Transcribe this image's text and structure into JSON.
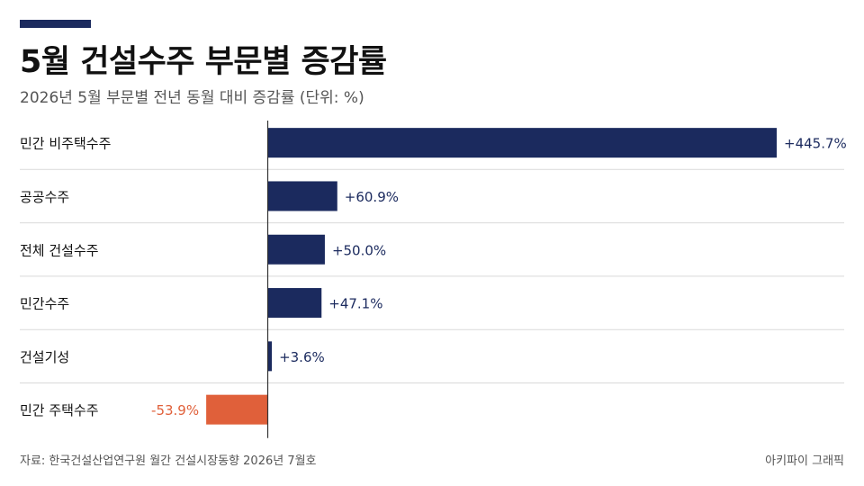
{
  "header": {
    "title": "5월 건설수주 부문별 증감률",
    "subtitle": "2026년 5월 부문별 전년 동월 대비 증감률 (단위: %)"
  },
  "footer": {
    "source": "자료: 한국건설산업연구원 월간 건설시장동향 2026년 7월호",
    "credit": "아키파이 그래픽"
  },
  "colors": {
    "accent": "#1b2a5e",
    "positive": "#1b2a5e",
    "negative": "#e0603a",
    "grid": "#d9d9d9",
    "axis": "#333333"
  },
  "chart_data": {
    "type": "bar",
    "orientation": "horizontal",
    "categories": [
      "민간 비주택수주",
      "공공수주",
      "전체 건설수주",
      "민간수주",
      "건설기성",
      "민간 주택수주"
    ],
    "values": [
      445.7,
      60.9,
      50.0,
      47.1,
      3.6,
      -53.9
    ],
    "value_labels": [
      "+445.7%",
      "+60.9%",
      "+50.0%",
      "+47.1%",
      "+3.6%",
      "-53.9%"
    ],
    "xlim": [
      -53.9,
      445.7
    ],
    "title": "5월 건설수주 부문별 증감률",
    "xlabel": "",
    "ylabel": "",
    "grid": false,
    "legend": "none"
  }
}
